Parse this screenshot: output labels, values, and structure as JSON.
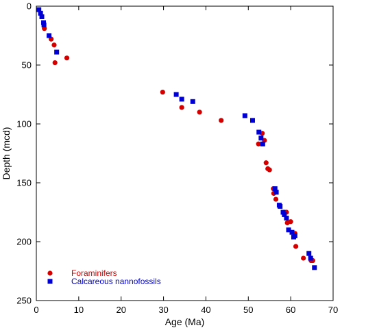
{
  "chart_data": {
    "type": "scatter",
    "title": "",
    "xlabel": "Age (Ma)",
    "ylabel": "Depth (mcd)",
    "xlim": [
      0,
      70
    ],
    "ylim": [
      0,
      250
    ],
    "y_inverted": true,
    "x_ticks": [
      0,
      10,
      20,
      30,
      40,
      50,
      60,
      70
    ],
    "y_ticks": [
      0,
      50,
      100,
      150,
      200,
      250
    ],
    "grid": false,
    "legend_position": "bottom-left",
    "series": [
      {
        "name": "Foraminifers",
        "marker": "circle",
        "color": "#d40000",
        "points": [
          [
            1.9,
            19
          ],
          [
            3.5,
            28
          ],
          [
            4.2,
            33
          ],
          [
            7.2,
            44
          ],
          [
            4.4,
            48
          ],
          [
            29.8,
            73
          ],
          [
            34.3,
            86
          ],
          [
            38.5,
            90
          ],
          [
            43.6,
            97
          ],
          [
            53.3,
            108
          ],
          [
            53.8,
            114
          ],
          [
            52.4,
            117
          ],
          [
            54.2,
            133
          ],
          [
            54.6,
            138
          ],
          [
            55.0,
            139
          ],
          [
            55.9,
            155
          ],
          [
            56.0,
            159
          ],
          [
            56.5,
            164
          ],
          [
            59.0,
            175
          ],
          [
            59.2,
            184
          ],
          [
            60.0,
            183
          ],
          [
            61.0,
            193
          ],
          [
            61.2,
            204
          ],
          [
            63.0,
            214
          ],
          [
            64.8,
            216
          ],
          [
            65.2,
            216
          ]
        ]
      },
      {
        "name": "Calcareous nannofossils",
        "marker": "square",
        "color": "#0000d4",
        "points": [
          [
            0.6,
            3
          ],
          [
            1.0,
            6
          ],
          [
            1.3,
            9
          ],
          [
            1.7,
            14
          ],
          [
            1.8,
            16
          ],
          [
            3.0,
            25
          ],
          [
            4.8,
            39
          ],
          [
            33.0,
            75
          ],
          [
            34.3,
            79
          ],
          [
            36.9,
            81
          ],
          [
            49.2,
            93
          ],
          [
            51.0,
            97
          ],
          [
            52.5,
            107
          ],
          [
            53.0,
            112
          ],
          [
            53.4,
            117
          ],
          [
            56.3,
            155
          ],
          [
            56.6,
            158
          ],
          [
            57.3,
            169
          ],
          [
            57.5,
            170
          ],
          [
            58.2,
            175
          ],
          [
            58.5,
            177
          ],
          [
            59.0,
            180
          ],
          [
            59.5,
            190
          ],
          [
            60.3,
            192
          ],
          [
            61.0,
            195
          ],
          [
            60.7,
            196
          ],
          [
            64.3,
            210
          ],
          [
            64.7,
            214
          ],
          [
            65.6,
            222
          ]
        ]
      }
    ]
  }
}
